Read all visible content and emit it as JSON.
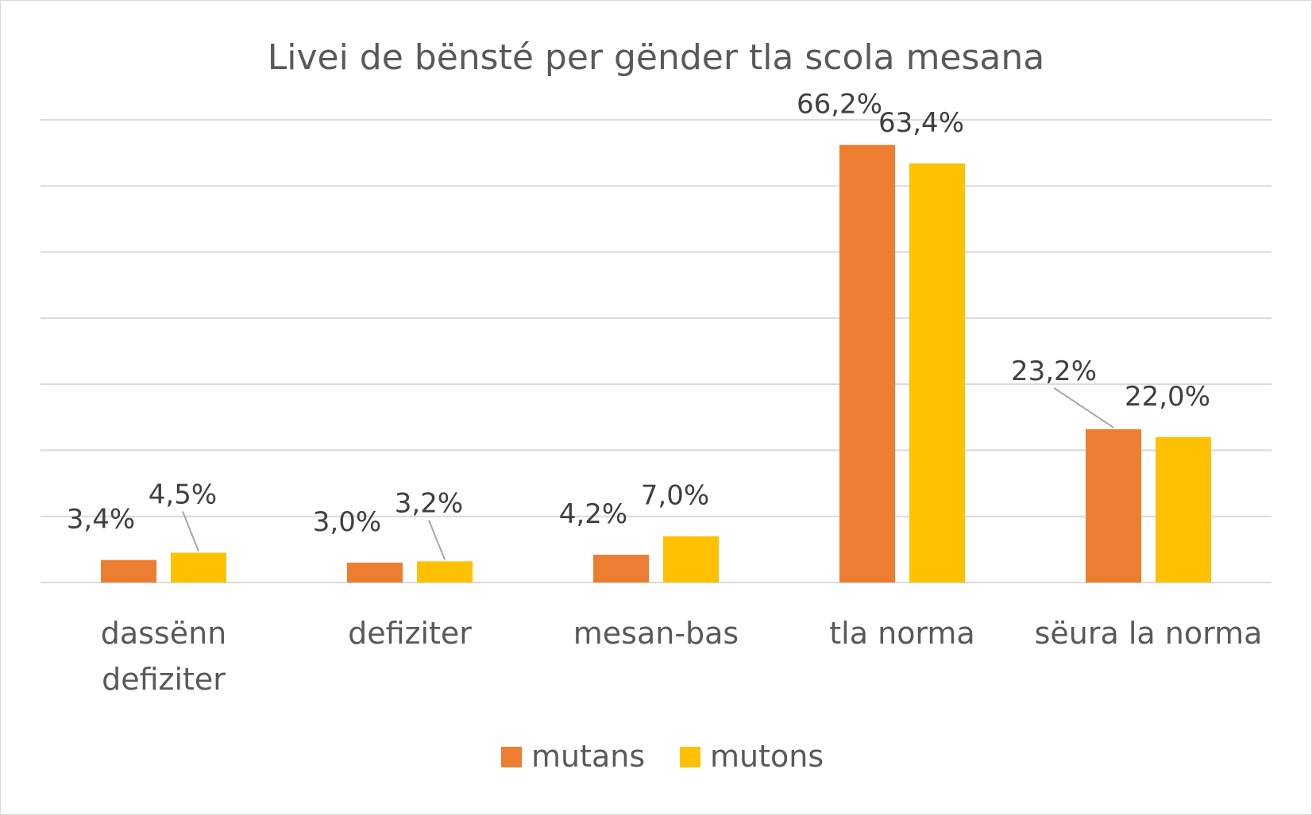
{
  "chart_data": {
    "type": "bar",
    "title": "Livei de bënsté per gënder tla scola mesana",
    "categories": [
      [
        "dassënn",
        "defiziter"
      ],
      [
        "defiziter"
      ],
      [
        "mesan-bas"
      ],
      [
        "tla norma"
      ],
      [
        "sëura la norma"
      ]
    ],
    "series": [
      {
        "name": "mutans",
        "color": "#ED7D31",
        "values": [
          3.4,
          3.0,
          4.2,
          66.2,
          23.2
        ],
        "labels": [
          "3,4%",
          "3,0%",
          "4,2%",
          "66,2%",
          "23,2%"
        ]
      },
      {
        "name": "mutons",
        "color": "#FFC000",
        "values": [
          4.5,
          3.2,
          7.0,
          63.4,
          22.0
        ],
        "labels": [
          "4,5%",
          "3,2%",
          "7,0%",
          "63,4%",
          "22,0%"
        ]
      }
    ],
    "ylim": [
      0,
      70
    ],
    "gridlines": true,
    "legend_position": "bottom"
  }
}
